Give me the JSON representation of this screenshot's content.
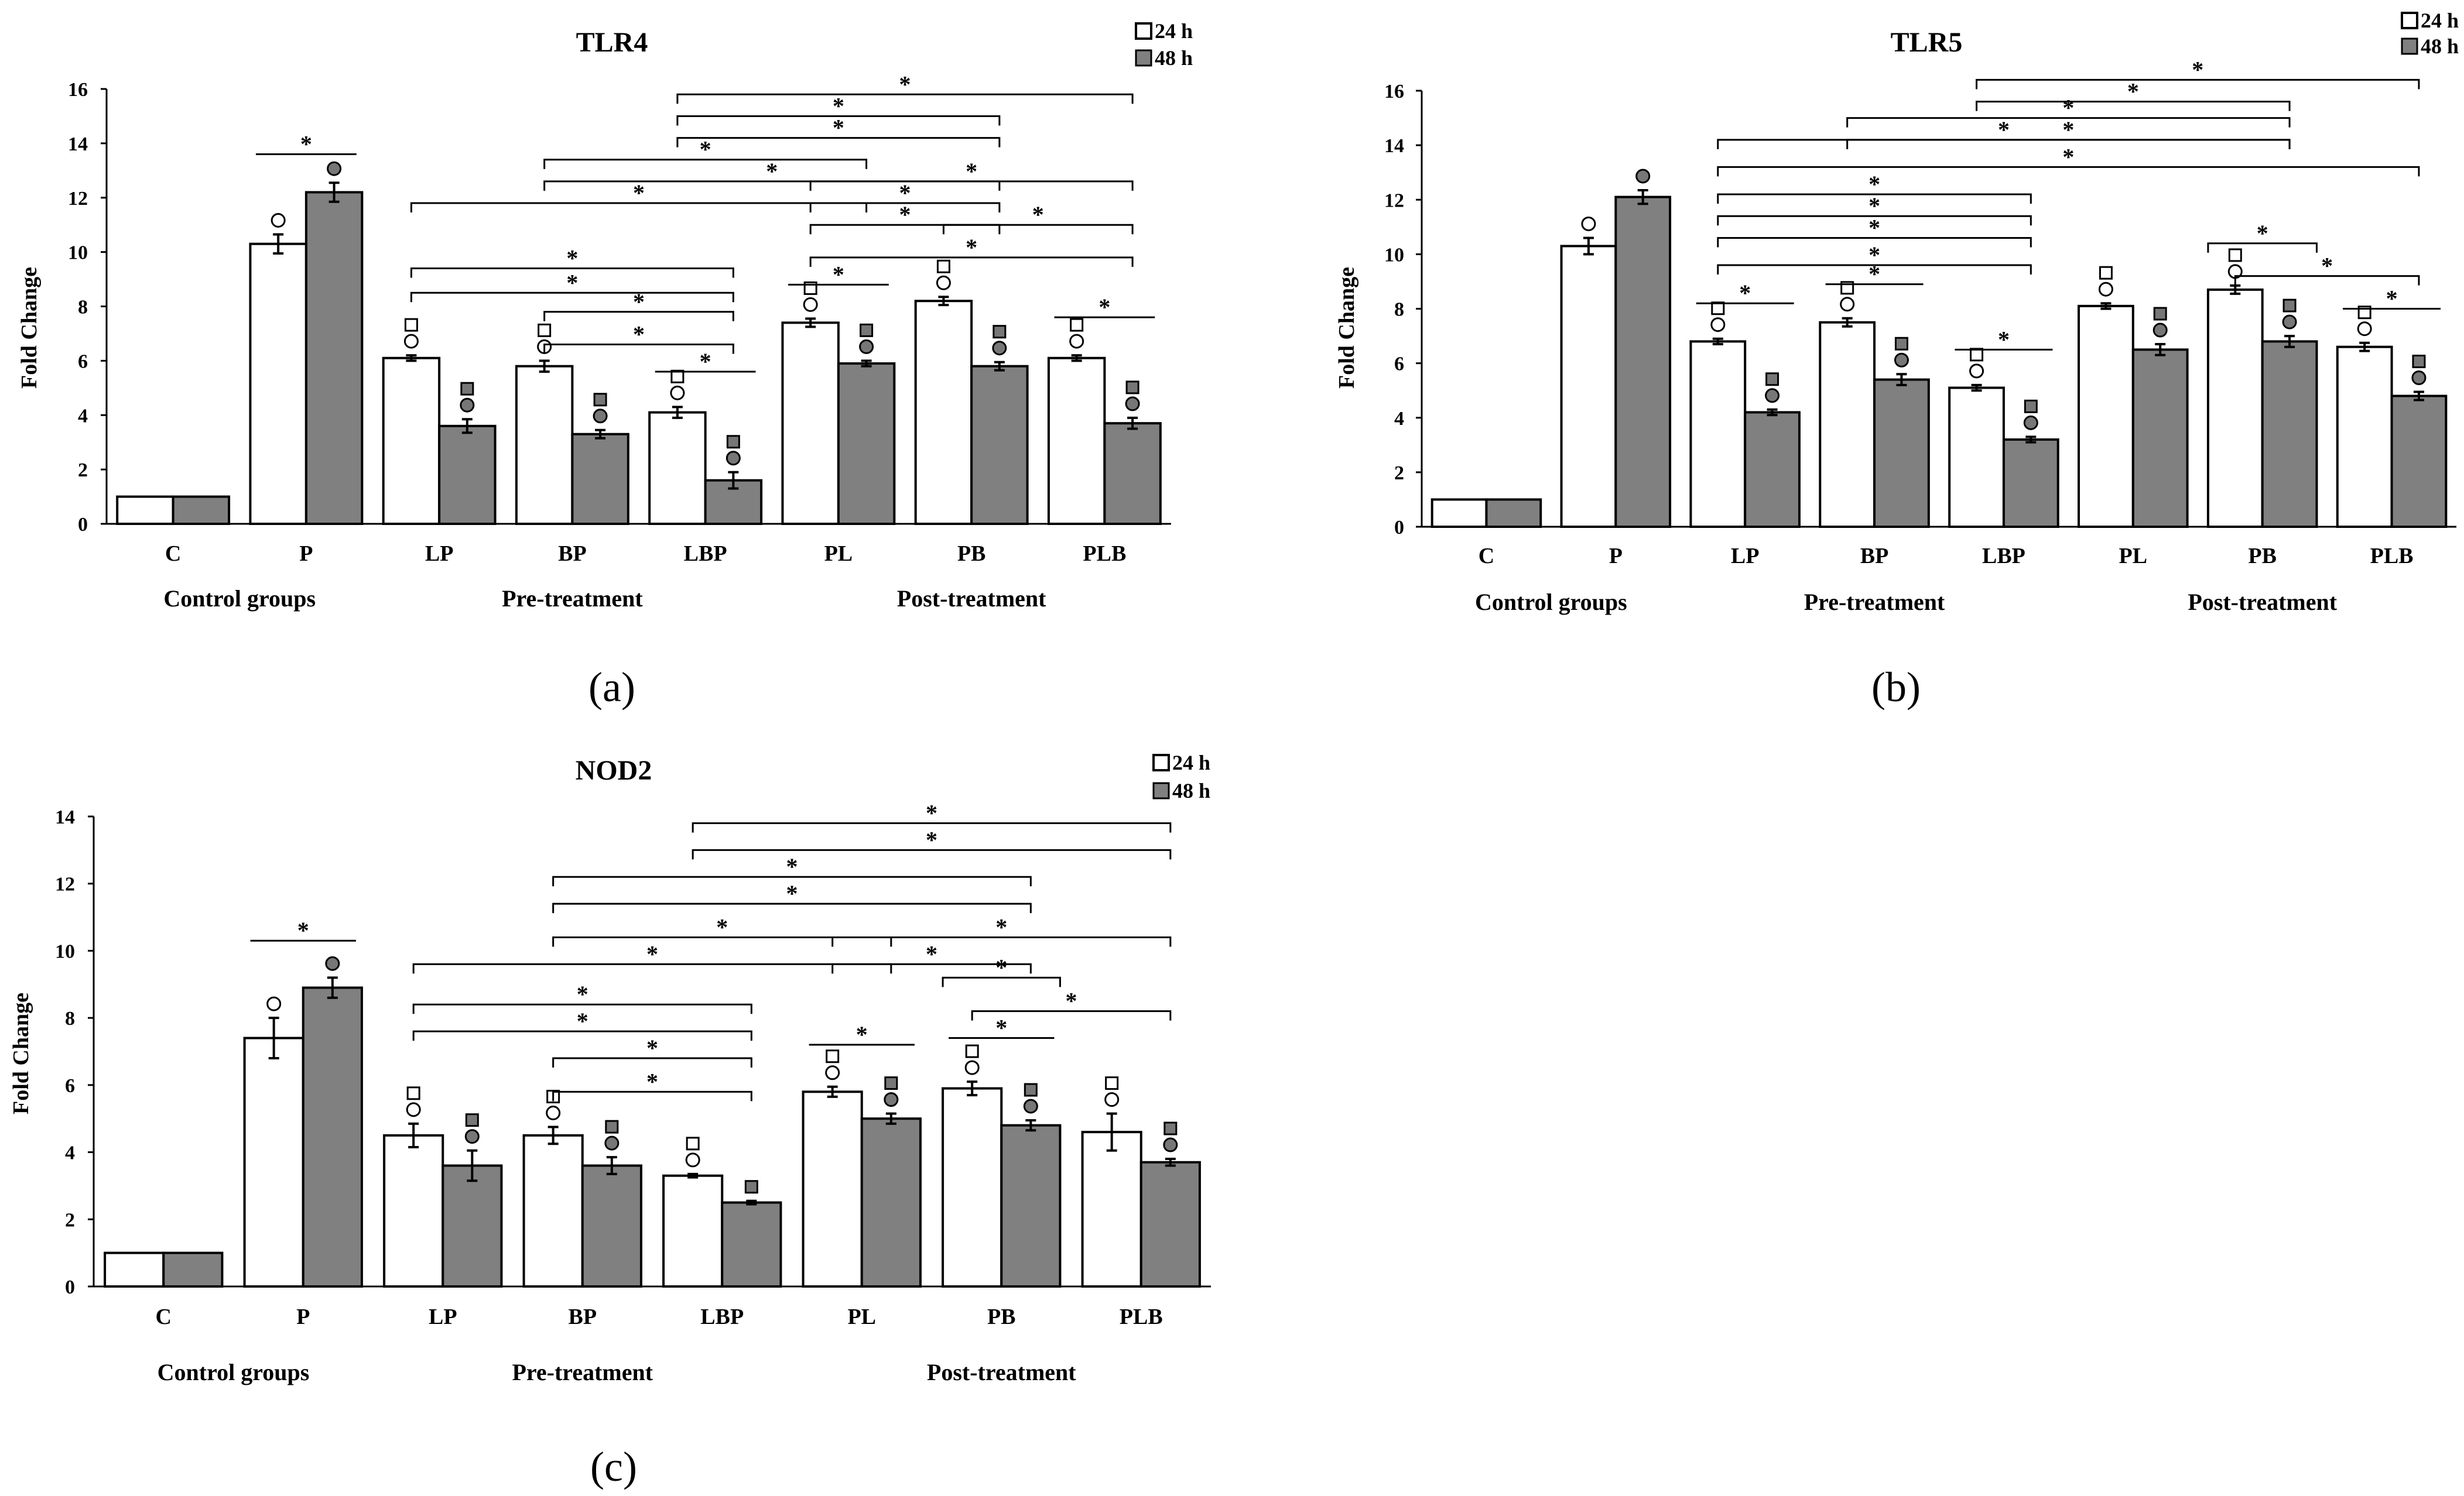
{
  "chart_data": [
    {
      "type": "bar",
      "title": "TLR4",
      "panel_label": "(a)",
      "ylabel": "Fold Change",
      "ylim": [
        0,
        16
      ],
      "yticks": [
        0,
        2,
        4,
        6,
        8,
        10,
        12,
        14,
        16
      ],
      "categories": [
        "C",
        "P",
        "LP",
        "BP",
        "LBP",
        "PL",
        "PB",
        "PLB"
      ],
      "groups": [
        {
          "label": "Control groups",
          "categories": [
            "C",
            "P"
          ]
        },
        {
          "label": "Pre-treatment",
          "categories": [
            "LP",
            "BP",
            "LBP"
          ]
        },
        {
          "label": "Post-treatment",
          "categories": [
            "PL",
            "PB",
            "PLB"
          ]
        }
      ],
      "legend": [
        "24 h",
        "48 h"
      ],
      "series": [
        {
          "name": "24 h",
          "color": "#ffffff",
          "values": [
            1.0,
            10.3,
            6.1,
            5.8,
            4.1,
            7.4,
            8.2,
            6.1
          ],
          "errors": [
            0,
            0.35,
            0.1,
            0.2,
            0.2,
            0.15,
            0.15,
            0.1
          ]
        },
        {
          "name": "48 h",
          "color": "#808080",
          "values": [
            1.0,
            12.2,
            3.6,
            3.3,
            1.6,
            5.9,
            5.8,
            3.7
          ],
          "errors": [
            0,
            0.35,
            0.25,
            0.15,
            0.3,
            0.1,
            0.15,
            0.2
          ]
        }
      ],
      "markers": [
        {
          "category": "P",
          "series": 0,
          "symbols": [
            "circle"
          ]
        },
        {
          "category": "P",
          "series": 1,
          "symbols": [
            "dot"
          ]
        },
        {
          "category": "LP",
          "series": 0,
          "symbols": [
            "circle",
            "square"
          ]
        },
        {
          "category": "LP",
          "series": 1,
          "symbols": [
            "dot",
            "filled-square"
          ]
        },
        {
          "category": "BP",
          "series": 0,
          "symbols": [
            "circle",
            "square"
          ]
        },
        {
          "category": "BP",
          "series": 1,
          "symbols": [
            "dot",
            "filled-square"
          ]
        },
        {
          "category": "LBP",
          "series": 0,
          "symbols": [
            "circle",
            "square"
          ]
        },
        {
          "category": "LBP",
          "series": 1,
          "symbols": [
            "dot",
            "filled-square"
          ]
        },
        {
          "category": "PL",
          "series": 0,
          "symbols": [
            "circle",
            "square"
          ]
        },
        {
          "category": "PL",
          "series": 1,
          "symbols": [
            "dot",
            "filled-square"
          ]
        },
        {
          "category": "PB",
          "series": 0,
          "symbols": [
            "circle",
            "square"
          ]
        },
        {
          "category": "PB",
          "series": 1,
          "symbols": [
            "dot",
            "filled-square"
          ]
        },
        {
          "category": "PLB",
          "series": 0,
          "symbols": [
            "circle",
            "square"
          ]
        },
        {
          "category": "PLB",
          "series": 1,
          "symbols": [
            "dot",
            "filled-square"
          ]
        }
      ],
      "significance": [
        {
          "from": "P",
          "to": "P",
          "y": 13.6,
          "label": "*",
          "style": "line"
        },
        {
          "from": "LBP",
          "to": "LBP",
          "y": 5.6,
          "label": "*",
          "style": "line"
        },
        {
          "from": "PL",
          "to": "PL",
          "y": 8.8,
          "label": "*",
          "style": "line"
        },
        {
          "from": "PLB",
          "to": "PLB",
          "y": 7.6,
          "label": "*",
          "style": "line"
        },
        {
          "from": "BP",
          "to": "LBP",
          "y": 6.6,
          "label": "*",
          "style": "bracket"
        },
        {
          "from": "BP",
          "to": "LBP",
          "y": 7.8,
          "label": "*",
          "style": "bracket"
        },
        {
          "from": "LP",
          "to": "LBP",
          "y": 8.5,
          "label": "*",
          "style": "bracket"
        },
        {
          "from": "LP",
          "to": "LBP",
          "y": 9.4,
          "label": "*",
          "style": "bracket"
        },
        {
          "from": "PL",
          "to": "PLB",
          "y": 9.8,
          "label": "*",
          "style": "bracket"
        },
        {
          "from": "PL",
          "to": "PB",
          "y": 11.0,
          "label": "*",
          "style": "bracket"
        },
        {
          "from": "PB",
          "to": "PLB",
          "y": 11.0,
          "label": "*",
          "style": "bracket"
        },
        {
          "from": "PL",
          "to": "PB",
          "y": 11.8,
          "label": "*",
          "style": "bracket"
        },
        {
          "from": "LP",
          "to": "PL",
          "y": 11.8,
          "label": "*",
          "style": "bracket"
        },
        {
          "from": "PL",
          "to": "PLB",
          "y": 12.6,
          "label": "*",
          "style": "bracket"
        },
        {
          "from": "BP",
          "to": "PB",
          "y": 12.6,
          "label": "*",
          "style": "bracket"
        },
        {
          "from": "BP",
          "to": "PL",
          "y": 13.4,
          "label": "*",
          "style": "bracket"
        },
        {
          "from": "LBP",
          "to": "PB",
          "y": 14.2,
          "label": "*",
          "style": "bracket"
        },
        {
          "from": "LBP",
          "to": "PB",
          "y": 15.0,
          "label": "*",
          "style": "bracket"
        },
        {
          "from": "LBP",
          "to": "PLB",
          "y": 15.8,
          "label": "*",
          "style": "bracket"
        }
      ]
    },
    {
      "type": "bar",
      "title": "TLR5",
      "panel_label": "(b)",
      "ylabel": "Fold Change",
      "ylim": [
        0,
        16
      ],
      "yticks": [
        0,
        2,
        4,
        6,
        8,
        10,
        12,
        14,
        16
      ],
      "categories": [
        "C",
        "P",
        "LP",
        "BP",
        "LBP",
        "PL",
        "PB",
        "PLB"
      ],
      "groups": [
        {
          "label": "Control groups",
          "categories": [
            "C",
            "P"
          ]
        },
        {
          "label": "Pre-treatment",
          "categories": [
            "LP",
            "BP",
            "LBP"
          ]
        },
        {
          "label": "Post-treatment",
          "categories": [
            "PL",
            "PB",
            "PLB"
          ]
        }
      ],
      "legend": [
        "24 h",
        "48 h"
      ],
      "series": [
        {
          "name": "24 h",
          "color": "#ffffff",
          "values": [
            1.0,
            10.3,
            6.8,
            7.5,
            5.1,
            8.1,
            8.7,
            6.6
          ],
          "errors": [
            0,
            0.3,
            0.1,
            0.15,
            0.1,
            0.1,
            0.15,
            0.15
          ]
        },
        {
          "name": "48 h",
          "color": "#808080",
          "values": [
            1.0,
            12.1,
            4.2,
            5.4,
            3.2,
            6.5,
            6.8,
            4.8
          ],
          "errors": [
            0,
            0.25,
            0.1,
            0.2,
            0.1,
            0.2,
            0.2,
            0.15
          ]
        }
      ],
      "markers": [
        {
          "category": "P",
          "series": 0,
          "symbols": [
            "circle"
          ]
        },
        {
          "category": "P",
          "series": 1,
          "symbols": [
            "dot"
          ]
        },
        {
          "category": "LP",
          "series": 0,
          "symbols": [
            "circle",
            "square"
          ]
        },
        {
          "category": "LP",
          "series": 1,
          "symbols": [
            "dot",
            "filled-square"
          ]
        },
        {
          "category": "BP",
          "series": 0,
          "symbols": [
            "circle",
            "square"
          ]
        },
        {
          "category": "BP",
          "series": 1,
          "symbols": [
            "dot",
            "filled-square"
          ]
        },
        {
          "category": "LBP",
          "series": 0,
          "symbols": [
            "circle",
            "square"
          ]
        },
        {
          "category": "LBP",
          "series": 1,
          "symbols": [
            "dot",
            "filled-square"
          ]
        },
        {
          "category": "PL",
          "series": 0,
          "symbols": [
            "circle",
            "square"
          ]
        },
        {
          "category": "PL",
          "series": 1,
          "symbols": [
            "dot",
            "filled-square"
          ]
        },
        {
          "category": "PB",
          "series": 0,
          "symbols": [
            "circle",
            "square"
          ]
        },
        {
          "category": "PB",
          "series": 1,
          "symbols": [
            "dot",
            "filled-square"
          ]
        },
        {
          "category": "PLB",
          "series": 0,
          "symbols": [
            "circle",
            "square"
          ]
        },
        {
          "category": "PLB",
          "series": 1,
          "symbols": [
            "dot",
            "filled-square"
          ]
        }
      ],
      "significance": [
        {
          "from": "LP",
          "to": "LP",
          "y": 8.2,
          "label": "*",
          "style": "line"
        },
        {
          "from": "BP",
          "to": "BP",
          "y": 8.9,
          "label": "*",
          "style": "line"
        },
        {
          "from": "LBP",
          "to": "LBP",
          "y": 6.5,
          "label": "*",
          "style": "line"
        },
        {
          "from": "PLB",
          "to": "PLB",
          "y": 8.0,
          "label": "*",
          "style": "line"
        },
        {
          "from": "PB",
          "to": "PLB",
          "y": 9.2,
          "label": "*",
          "style": "bracket"
        },
        {
          "from": "PB",
          "to": "PB",
          "y": 10.4,
          "label": "*",
          "style": "bracket"
        },
        {
          "from": "LP",
          "to": "LBP",
          "y": 9.6,
          "label": "*",
          "style": "bracket"
        },
        {
          "from": "LP",
          "to": "LBP",
          "y": 10.6,
          "label": "*",
          "style": "bracket"
        },
        {
          "from": "LP",
          "to": "LBP",
          "y": 11.4,
          "label": "*",
          "style": "bracket"
        },
        {
          "from": "LP",
          "to": "LBP",
          "y": 12.2,
          "label": "*",
          "style": "bracket"
        },
        {
          "from": "LP",
          "to": "PLB",
          "y": 13.2,
          "label": "*",
          "style": "bracket"
        },
        {
          "from": "LP",
          "to": "PB",
          "y": 14.2,
          "label": "*",
          "style": "bracket"
        },
        {
          "from": "BP",
          "to": "PB",
          "y": 14.2,
          "label": "*",
          "style": "bracket"
        },
        {
          "from": "BP",
          "to": "PB",
          "y": 15.0,
          "label": "*",
          "style": "bracket"
        },
        {
          "from": "LBP",
          "to": "PB",
          "y": 15.6,
          "label": "*",
          "style": "bracket"
        },
        {
          "from": "LBP",
          "to": "PLB",
          "y": 16.4,
          "label": "*",
          "style": "bracket"
        }
      ]
    },
    {
      "type": "bar",
      "title": "NOD2",
      "panel_label": "(c)",
      "ylabel": "Fold Change",
      "ylim": [
        0,
        14
      ],
      "yticks": [
        0,
        2,
        4,
        6,
        8,
        10,
        12,
        14
      ],
      "categories": [
        "C",
        "P",
        "LP",
        "BP",
        "LBP",
        "PL",
        "PB",
        "PLB"
      ],
      "groups": [
        {
          "label": "Control groups",
          "categories": [
            "C",
            "P"
          ]
        },
        {
          "label": "Pre-treatment",
          "categories": [
            "LP",
            "BP",
            "LBP"
          ]
        },
        {
          "label": "Post-treatment",
          "categories": [
            "PL",
            "PB",
            "PLB"
          ]
        }
      ],
      "legend": [
        "24 h",
        "48 h"
      ],
      "series": [
        {
          "name": "24 h",
          "color": "#ffffff",
          "values": [
            1.0,
            7.4,
            4.5,
            4.5,
            3.3,
            5.8,
            5.9,
            4.6
          ],
          "errors": [
            0,
            0.6,
            0.35,
            0.25,
            0.05,
            0.15,
            0.2,
            0.55
          ]
        },
        {
          "name": "48 h",
          "color": "#808080",
          "values": [
            1.0,
            8.9,
            3.6,
            3.6,
            2.5,
            5.0,
            4.8,
            3.7
          ],
          "errors": [
            0,
            0.3,
            0.45,
            0.25,
            0.05,
            0.15,
            0.15,
            0.1
          ]
        }
      ],
      "markers": [
        {
          "category": "P",
          "series": 0,
          "symbols": [
            "circle"
          ]
        },
        {
          "category": "P",
          "series": 1,
          "symbols": [
            "dot"
          ]
        },
        {
          "category": "LP",
          "series": 0,
          "symbols": [
            "circle",
            "square"
          ]
        },
        {
          "category": "LP",
          "series": 1,
          "symbols": [
            "dot",
            "filled-square"
          ]
        },
        {
          "category": "BP",
          "series": 0,
          "symbols": [
            "circle",
            "square"
          ]
        },
        {
          "category": "BP",
          "series": 1,
          "symbols": [
            "dot",
            "filled-square"
          ]
        },
        {
          "category": "LBP",
          "series": 0,
          "symbols": [
            "circle",
            "square"
          ]
        },
        {
          "category": "LBP",
          "series": 1,
          "symbols": [
            "filled-square"
          ]
        },
        {
          "category": "PL",
          "series": 0,
          "symbols": [
            "circle",
            "square"
          ]
        },
        {
          "category": "PL",
          "series": 1,
          "symbols": [
            "dot",
            "filled-square"
          ]
        },
        {
          "category": "PB",
          "series": 0,
          "symbols": [
            "circle",
            "square"
          ]
        },
        {
          "category": "PB",
          "series": 1,
          "symbols": [
            "dot",
            "filled-square"
          ]
        },
        {
          "category": "PLB",
          "series": 0,
          "symbols": [
            "circle",
            "square"
          ]
        },
        {
          "category": "PLB",
          "series": 1,
          "symbols": [
            "dot",
            "filled-square"
          ]
        }
      ],
      "significance": [
        {
          "from": "P",
          "to": "P",
          "y": 10.3,
          "label": "*",
          "style": "line"
        },
        {
          "from": "PL",
          "to": "PL",
          "y": 7.2,
          "label": "*",
          "style": "line"
        },
        {
          "from": "PB",
          "to": "PB",
          "y": 7.4,
          "label": "*",
          "style": "line"
        },
        {
          "from": "BP",
          "to": "LBP",
          "y": 5.8,
          "label": "*",
          "style": "bracket"
        },
        {
          "from": "BP",
          "to": "LBP",
          "y": 6.8,
          "label": "*",
          "style": "bracket"
        },
        {
          "from": "LP",
          "to": "LBP",
          "y": 7.6,
          "label": "*",
          "style": "bracket"
        },
        {
          "from": "LP",
          "to": "LBP",
          "y": 8.4,
          "label": "*",
          "style": "bracket"
        },
        {
          "from": "PB",
          "to": "PLB",
          "y": 8.2,
          "label": "*",
          "style": "bracket"
        },
        {
          "from": "PB",
          "to": "PB",
          "y": 9.2,
          "label": "*",
          "style": "bracket"
        },
        {
          "from": "PL",
          "to": "PB",
          "y": 9.6,
          "label": "*",
          "style": "bracket"
        },
        {
          "from": "LP",
          "to": "PL",
          "y": 9.6,
          "label": "*",
          "style": "bracket"
        },
        {
          "from": "PL",
          "to": "PLB",
          "y": 10.4,
          "label": "*",
          "style": "bracket"
        },
        {
          "from": "BP",
          "to": "PL",
          "y": 10.4,
          "label": "*",
          "style": "bracket"
        },
        {
          "from": "BP",
          "to": "PB",
          "y": 11.4,
          "label": "*",
          "style": "bracket"
        },
        {
          "from": "BP",
          "to": "PB",
          "y": 12.2,
          "label": "*",
          "style": "bracket"
        },
        {
          "from": "LBP",
          "to": "PLB",
          "y": 13.0,
          "label": "*",
          "style": "bracket"
        },
        {
          "from": "LBP",
          "to": "PLB",
          "y": 13.8,
          "label": "*",
          "style": "bracket"
        }
      ]
    }
  ]
}
